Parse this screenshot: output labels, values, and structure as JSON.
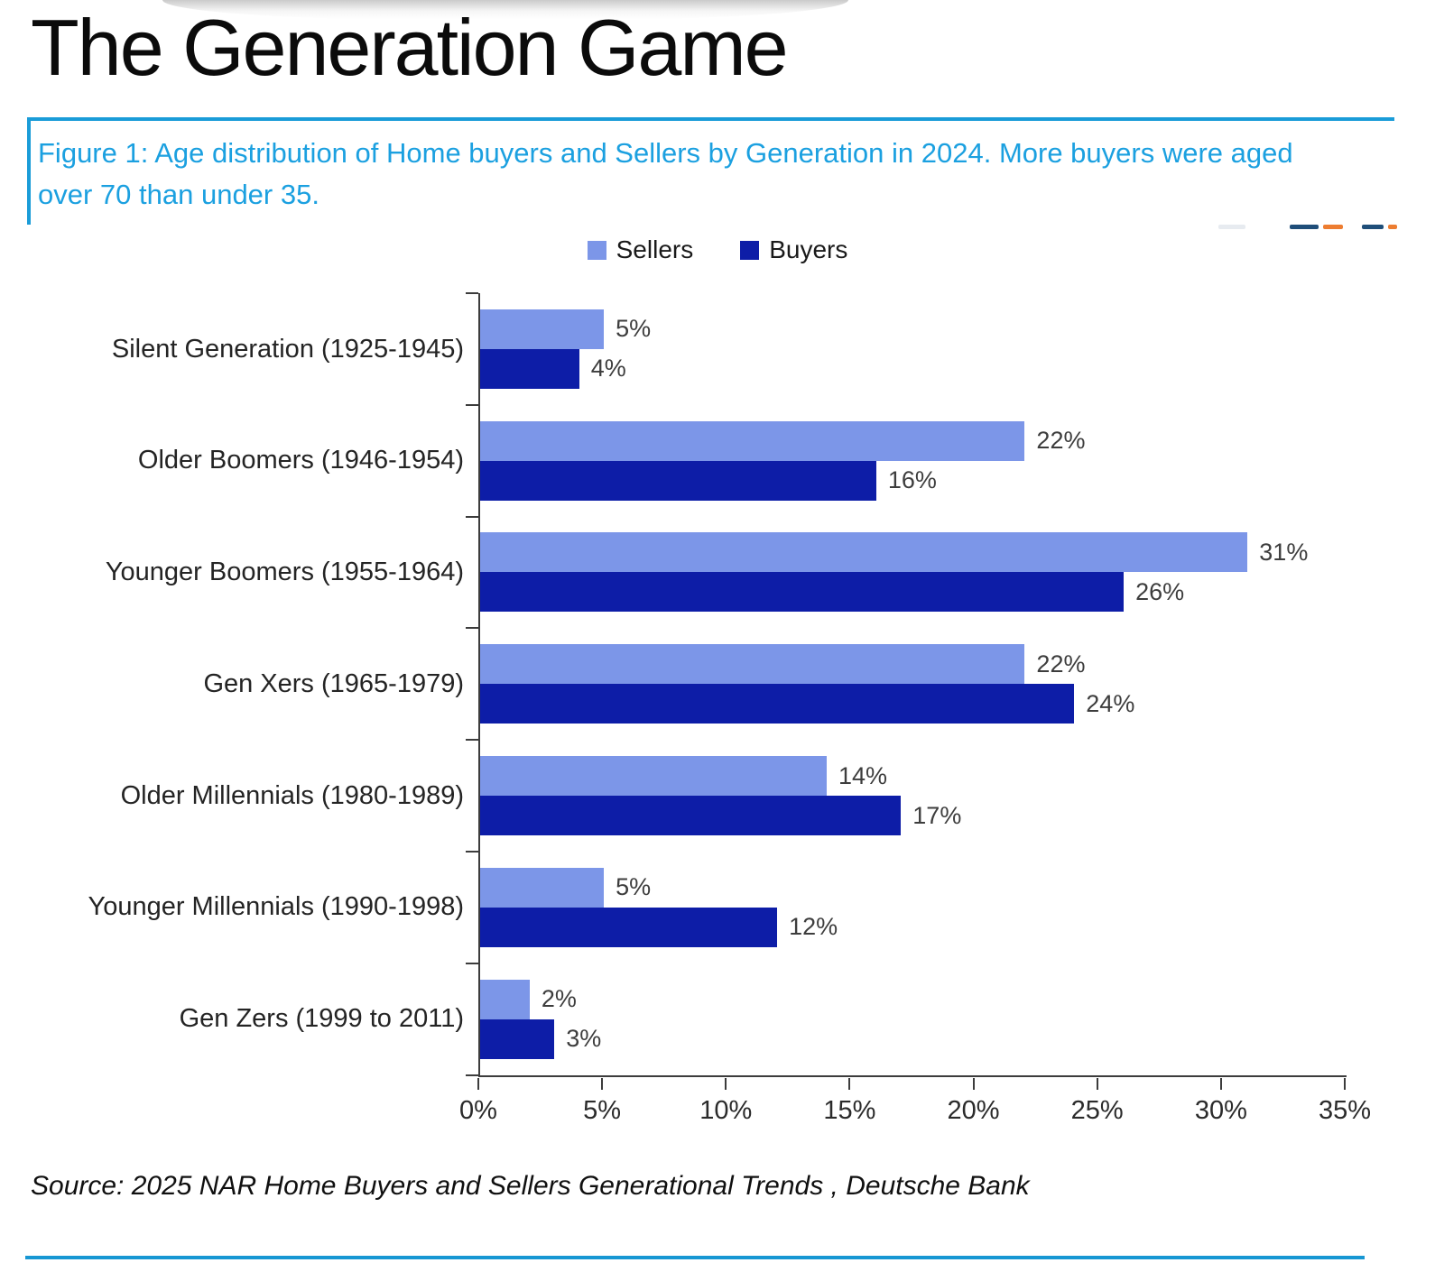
{
  "page": {
    "title": "The Generation Game",
    "caption_lines": [
      "Figure 1: Age distribution of Home buyers and Sellers by Generation in 2024. More buyers were aged",
      "over 70 than under 35."
    ],
    "source": "Source: 2025 NAR Home Buyers and Sellers Generational Trends , Deutsche Bank"
  },
  "colors": {
    "accent_cyan": "#1a9cd8",
    "caption_text": "#1ba0e0",
    "sellers": "#7c96e8",
    "buyers": "#0d1da7",
    "axis": "#3c3c3c"
  },
  "chart_data": {
    "type": "bar",
    "orientation": "horizontal",
    "title": "",
    "xlabel": "",
    "ylabel": "",
    "categories": [
      "Silent Generation (1925-1945)",
      "Older Boomers (1946-1954)",
      "Younger Boomers (1955-1964)",
      "Gen Xers (1965-1979)",
      "Older Millennials (1980-1989)",
      "Younger Millennials (1990-1998)",
      "Gen Zers (1999 to 2011)"
    ],
    "series": [
      {
        "name": "Sellers",
        "color": "#7c96e8",
        "values": [
          5,
          22,
          31,
          22,
          14,
          5,
          2
        ]
      },
      {
        "name": "Buyers",
        "color": "#0d1da7",
        "values": [
          4,
          16,
          26,
          24,
          17,
          12,
          3
        ]
      }
    ],
    "value_suffix": "%",
    "data_labels": true,
    "xlim": [
      0,
      35
    ],
    "x_tick_step": 5,
    "x_ticks": [
      "0%",
      "5%",
      "10%",
      "15%",
      "20%",
      "25%",
      "30%",
      "35%"
    ],
    "legend_position": "top",
    "grid": false
  }
}
